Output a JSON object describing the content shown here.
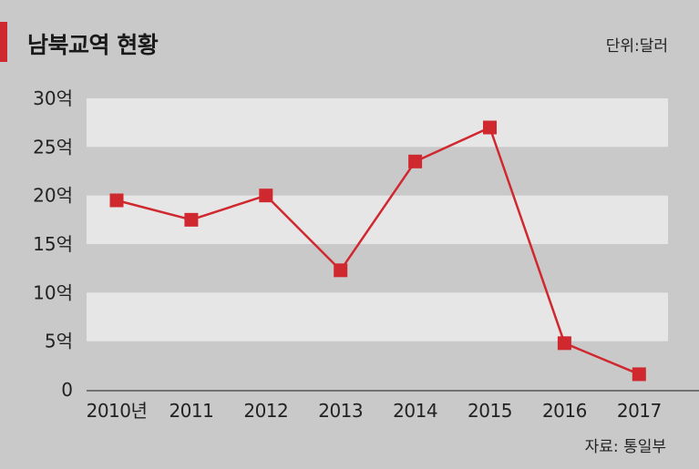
{
  "header": {
    "title": "남북교역 현황",
    "unit": "단위:달러"
  },
  "footer": {
    "source": "자료: 통일부"
  },
  "colors": {
    "background": "#c9c9c9",
    "band": "#e6e6e6",
    "accent": "#d0282f",
    "series": "#d0282f"
  },
  "chart_data": {
    "type": "line",
    "title": "남북교역 현황",
    "categories": [
      "2010년",
      "2011",
      "2012",
      "2013",
      "2014",
      "2015",
      "2016",
      "2017"
    ],
    "series": [
      {
        "values": [
          19.5,
          17.5,
          20,
          12.3,
          23.5,
          27,
          4.8,
          1.6
        ]
      }
    ],
    "ylim": [
      0,
      30
    ],
    "yticks": [
      {
        "value": 0,
        "label": "0"
      },
      {
        "value": 5,
        "label": "5억"
      },
      {
        "value": 10,
        "label": "10억"
      },
      {
        "value": 15,
        "label": "15억"
      },
      {
        "value": 20,
        "label": "20억"
      },
      {
        "value": 25,
        "label": "25억"
      },
      {
        "value": 30,
        "label": "30억"
      }
    ],
    "alternating_bands": true,
    "marker": "square",
    "legend": "none"
  }
}
